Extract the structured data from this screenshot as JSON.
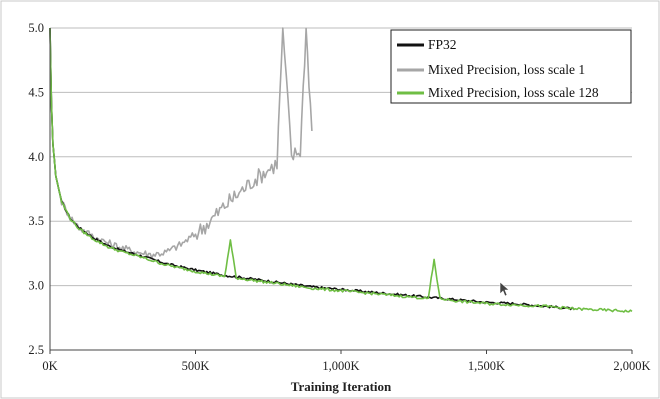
{
  "chart_data": {
    "type": "line",
    "title": "",
    "xlabel": "Training Iteration",
    "ylabel": "",
    "xlim": [
      0,
      2000000
    ],
    "ylim": [
      2.5,
      5.0
    ],
    "x_ticks": [
      0,
      500000,
      1000000,
      1500000,
      2000000
    ],
    "x_tick_labels": [
      "0K",
      "500K",
      "1,000K",
      "1,500K",
      "2,000K"
    ],
    "y_ticks": [
      2.5,
      3.0,
      3.5,
      4.0,
      4.5,
      5.0
    ],
    "y_tick_labels": [
      "2.5",
      "3.0",
      "3.5",
      "4.0",
      "4.5",
      "5.0"
    ],
    "grid": "horizontal",
    "legend_position": "top-right",
    "series": [
      {
        "name": "FP32",
        "color": "#111111",
        "x": [
          0,
          5000,
          10000,
          20000,
          40000,
          70000,
          100000,
          150000,
          200000,
          250000,
          300000,
          400000,
          500000,
          600000,
          700000,
          800000,
          900000,
          1000000,
          1100000,
          1200000,
          1300000,
          1400000,
          1500000,
          1600000,
          1700000,
          1800000
        ],
        "values": [
          5.0,
          4.4,
          4.1,
          3.85,
          3.65,
          3.52,
          3.45,
          3.37,
          3.31,
          3.27,
          3.24,
          3.17,
          3.12,
          3.08,
          3.05,
          3.02,
          2.99,
          2.97,
          2.95,
          2.93,
          2.91,
          2.89,
          2.87,
          2.86,
          2.84,
          2.82
        ]
      },
      {
        "name": "Mixed Precision, loss scale 1",
        "color": "#a6a6a6",
        "x": [
          0,
          5000,
          10000,
          20000,
          40000,
          70000,
          100000,
          150000,
          200000,
          250000,
          300000,
          350000,
          400000,
          450000,
          500000,
          550000,
          600000,
          650000,
          700000,
          750000,
          780000,
          800000,
          830000,
          860000,
          880000,
          900000
        ],
        "values": [
          5.0,
          4.4,
          4.1,
          3.85,
          3.65,
          3.53,
          3.45,
          3.38,
          3.33,
          3.29,
          3.26,
          3.24,
          3.26,
          3.32,
          3.4,
          3.5,
          3.62,
          3.72,
          3.82,
          3.9,
          3.95,
          5.0,
          4.0,
          4.05,
          5.0,
          4.2
        ]
      },
      {
        "name": "Mixed Precision, loss scale 128",
        "color": "#6fbe44",
        "x": [
          0,
          5000,
          10000,
          20000,
          40000,
          70000,
          100000,
          150000,
          200000,
          250000,
          300000,
          400000,
          500000,
          600000,
          620000,
          640000,
          700000,
          800000,
          900000,
          1000000,
          1100000,
          1200000,
          1300000,
          1320000,
          1340000,
          1400000,
          1500000,
          1600000,
          1700000,
          1800000,
          1900000,
          2000000
        ],
        "values": [
          5.0,
          4.4,
          4.1,
          3.85,
          3.65,
          3.52,
          3.44,
          3.36,
          3.3,
          3.26,
          3.23,
          3.16,
          3.11,
          3.07,
          3.35,
          3.06,
          3.04,
          3.01,
          2.98,
          2.96,
          2.94,
          2.92,
          2.9,
          3.2,
          2.9,
          2.88,
          2.86,
          2.85,
          2.84,
          2.82,
          2.81,
          2.8
        ]
      }
    ]
  }
}
